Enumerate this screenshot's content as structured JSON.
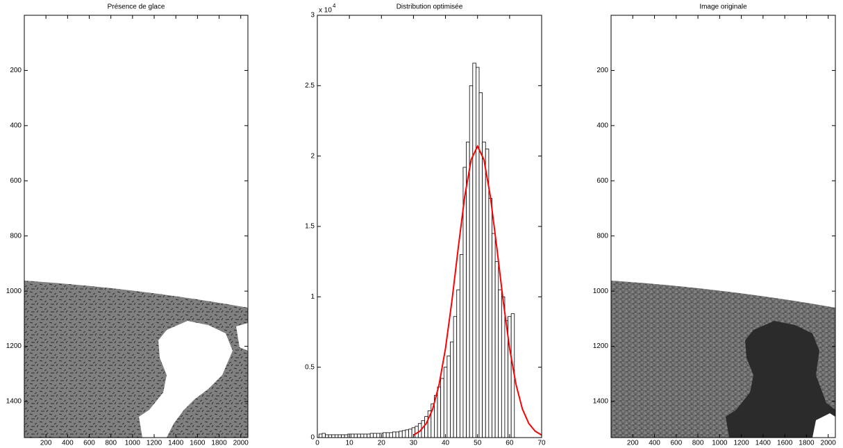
{
  "chart_data": [
    {
      "type": "image",
      "title": "Présence de glace",
      "xlim": [
        0,
        2066
      ],
      "ylim": [
        0,
        1531
      ],
      "y_reversed": true,
      "xticks": [
        200,
        400,
        600,
        800,
        1000,
        1200,
        1400,
        1600,
        1800,
        2000
      ],
      "yticks": [
        200,
        400,
        600,
        800,
        1000,
        1200,
        1400
      ]
    },
    {
      "type": "histogram",
      "title": "Distribution optimisée",
      "y_multiplier": "x 10",
      "y_multiplier_exponent": "4",
      "color": "#ffffff",
      "edgecolor": "#000000",
      "bins": [
        0.5,
        1.5,
        2.5,
        3.5,
        4.5,
        5.5,
        6.5,
        7.5,
        8.5,
        9.5,
        10.5,
        11.5,
        12.5,
        13.5,
        14.5,
        15.5,
        16.5,
        17.5,
        18.5,
        19.5,
        20.5,
        21.5,
        22.5,
        23.5,
        24.5,
        25.5,
        26.5,
        27.5,
        28.5,
        29.5,
        30.5,
        31.5,
        32.5,
        33.5,
        34.5,
        35.5,
        36.5,
        37.5,
        38.5,
        39.5,
        40.5,
        41.5,
        42.5,
        43.5,
        44.5,
        45.5,
        46.5,
        47.5,
        48.5,
        49.5,
        50.5,
        51.5,
        52.5,
        53.5,
        54.5,
        55.5,
        56.5,
        57.5,
        58.5,
        59.5,
        60.5,
        61.5
      ],
      "values": [
        250,
        300,
        200,
        200,
        200,
        200,
        200,
        200,
        200,
        250,
        250,
        250,
        250,
        250,
        250,
        250,
        300,
        300,
        300,
        300,
        350,
        350,
        350,
        400,
        400,
        450,
        500,
        550,
        600,
        700,
        800,
        1000,
        1200,
        1500,
        1900,
        2400,
        3000,
        3600,
        4200,
        5000,
        5800,
        6800,
        8600,
        10500,
        13000,
        19200,
        21000,
        25000,
        26600,
        26300,
        24500,
        21000,
        20500,
        17000,
        14500,
        12500,
        10500,
        10000,
        8300,
        8600,
        8800
      ],
      "fit": {
        "color": "#ff0000",
        "x": [
          30,
          32,
          34,
          36,
          38,
          40,
          42,
          44,
          46,
          48,
          50,
          52,
          54,
          56,
          58,
          60,
          62,
          64,
          66,
          68,
          70
        ],
        "values": [
          180,
          450,
          1000,
          2030,
          3770,
          6340,
          9710,
          13520,
          17130,
          19740,
          20700,
          19740,
          17130,
          13520,
          9710,
          6340,
          3770,
          2030,
          1000,
          450,
          180
        ]
      },
      "xlim": [
        0,
        70
      ],
      "ylim": [
        0,
        30000
      ],
      "xticks": [
        0,
        10,
        20,
        30,
        40,
        50,
        60,
        70
      ],
      "yticks": [
        0,
        {
          "value": 5000,
          "label": "0.5"
        },
        {
          "value": 10000,
          "label": "1"
        },
        {
          "value": 15000,
          "label": "1.5"
        },
        {
          "value": 20000,
          "label": "2"
        },
        {
          "value": 25000,
          "label": "2.5"
        },
        {
          "value": 30000,
          "label": "3"
        }
      ]
    },
    {
      "type": "image",
      "title": "Image originale",
      "xlim": [
        0,
        2066
      ],
      "ylim": [
        0,
        1531
      ],
      "y_reversed": true,
      "xticks": [
        200,
        400,
        600,
        800,
        1000,
        1200,
        1400,
        1600,
        1800,
        2000
      ],
      "yticks": [
        200,
        400,
        600,
        800,
        1000,
        1200,
        1400
      ]
    }
  ]
}
